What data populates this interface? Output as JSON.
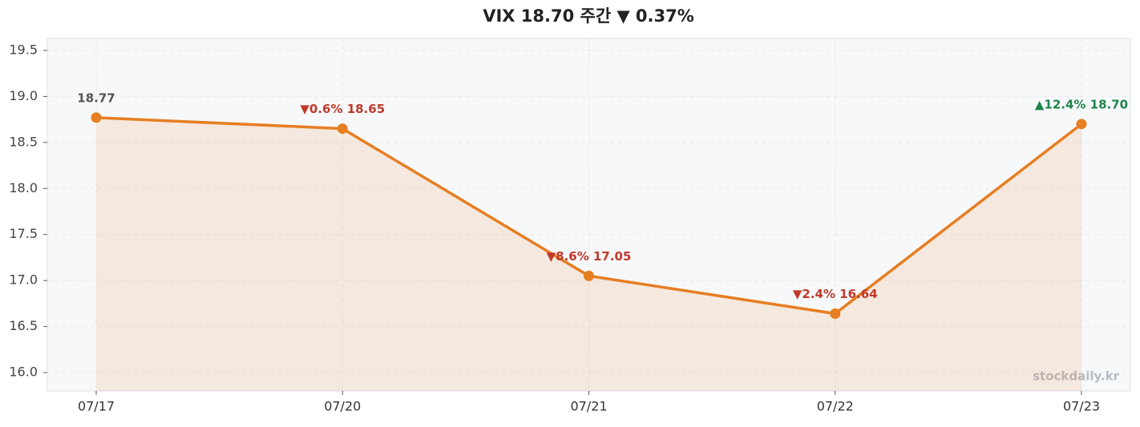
{
  "chart_data": {
    "type": "line",
    "title": "VIX 18.70 주간 ▼ 0.37%",
    "categories": [
      "07/17",
      "07/20",
      "07/21",
      "07/22",
      "07/23"
    ],
    "series": [
      {
        "name": "VIX",
        "color": "#e67e22",
        "values": [
          18.77,
          18.65,
          17.05,
          16.64,
          18.7
        ],
        "value_labels": [
          "18.77",
          "▼0.6% 18.65",
          "▼8.6% 17.05",
          "▼2.4% 16.64",
          "▲12.4% 18.70"
        ],
        "value_label_colors": [
          "#555555",
          "#c0392b",
          "#c0392b",
          "#c0392b",
          "#1e8449"
        ]
      }
    ],
    "ylim": [
      15.8,
      19.63
    ],
    "yticks": [
      {
        "value": 16,
        "label": "16.0"
      },
      {
        "value": 16.5,
        "label": "16.5"
      },
      {
        "value": 17,
        "label": "17.0"
      },
      {
        "value": 17.5,
        "label": "17.5"
      },
      {
        "value": 18,
        "label": "18.0"
      },
      {
        "value": 18.5,
        "label": "18.5"
      },
      {
        "value": 19,
        "label": "19.0"
      },
      {
        "value": 19.5,
        "label": "19.5"
      }
    ],
    "grid": true,
    "area_fill": true,
    "watermark": "stockdaily.kr"
  }
}
